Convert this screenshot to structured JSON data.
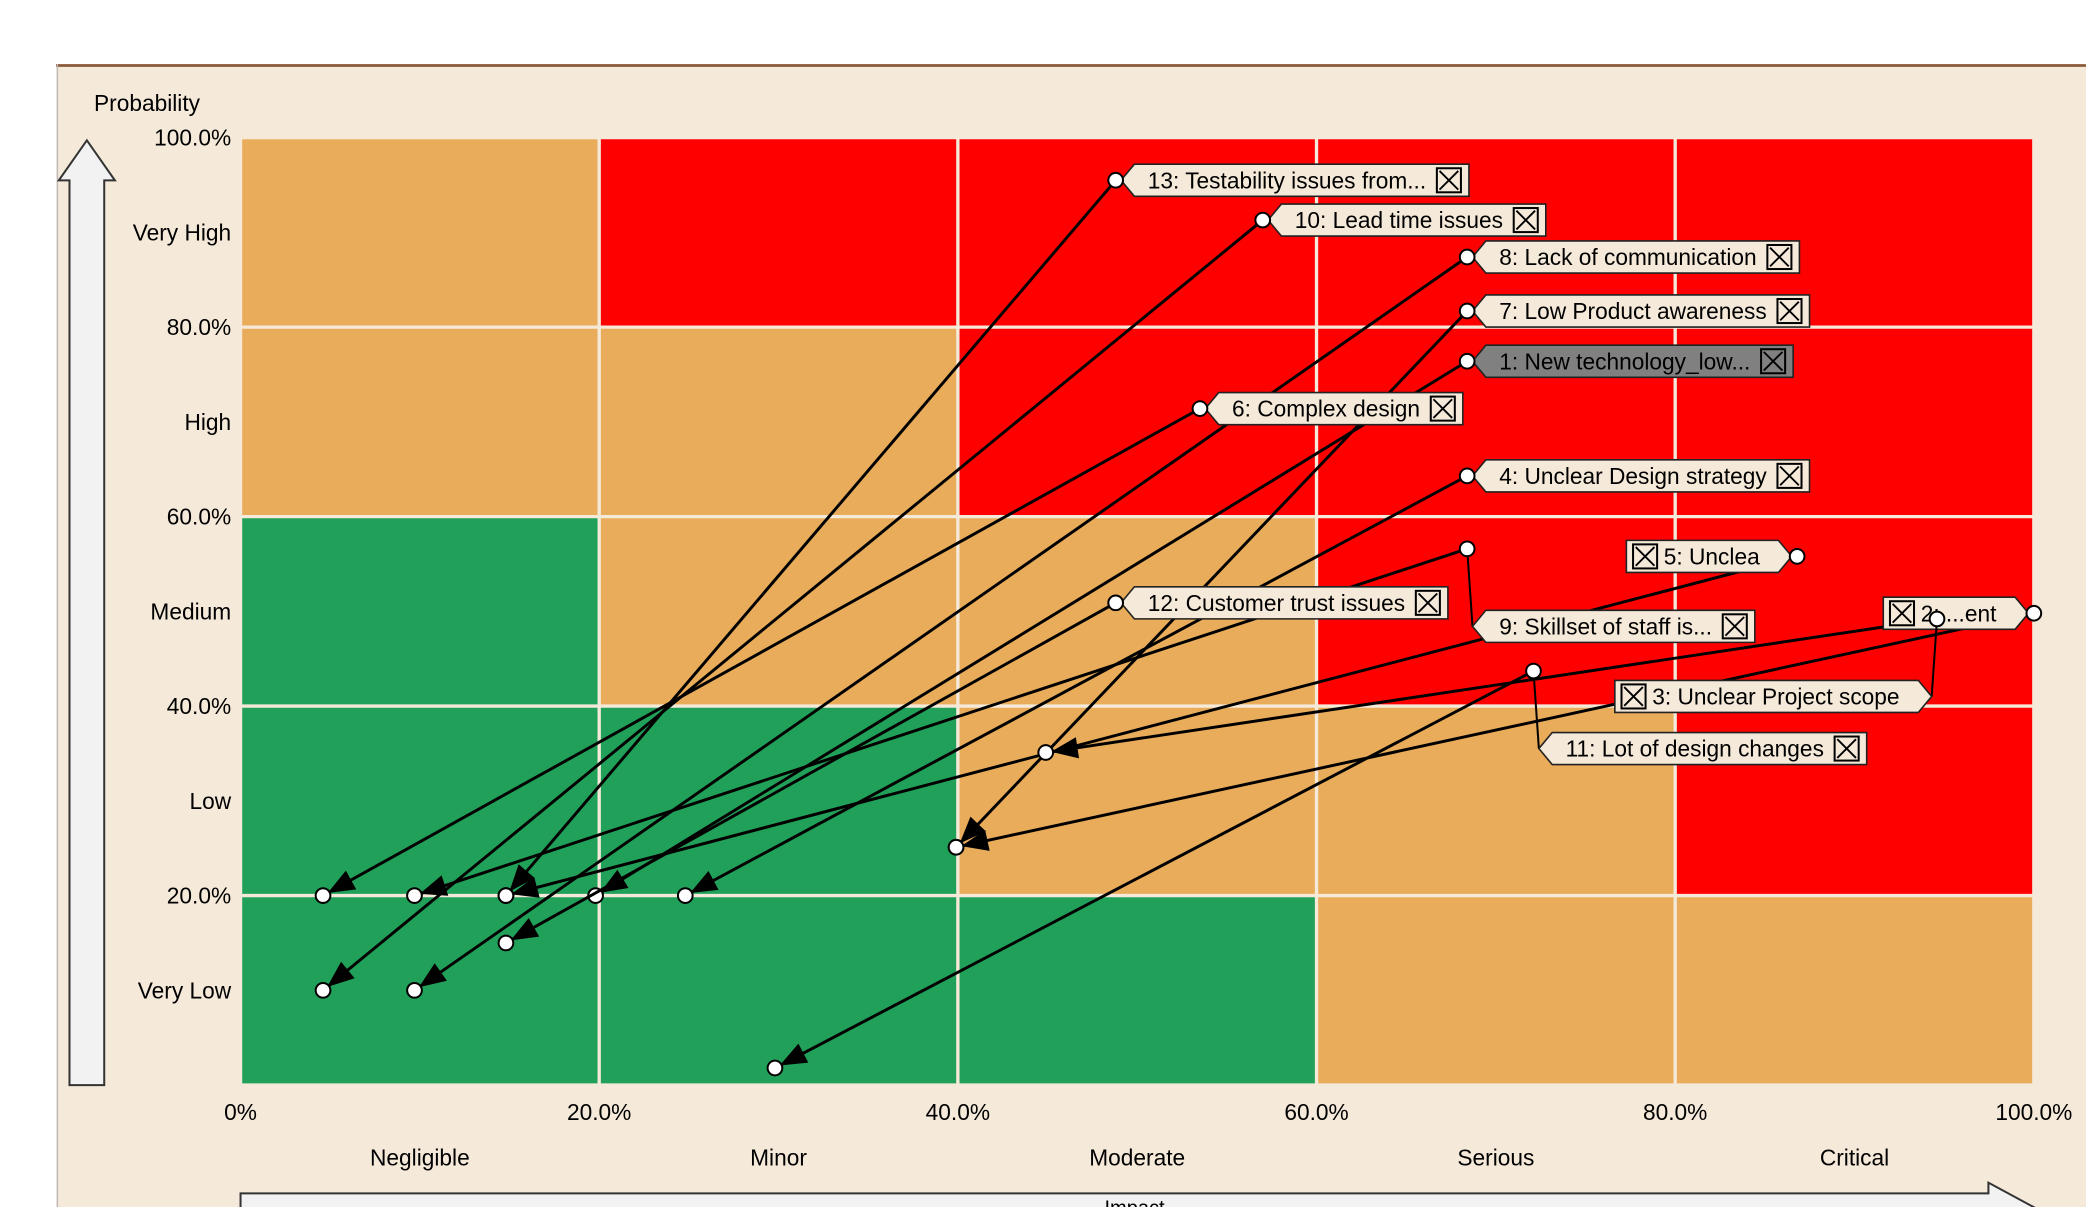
{
  "chart_data": {
    "type": "scatter",
    "subtype": "risk-matrix",
    "ylabel": "Probability",
    "xlabel": "Impact",
    "xlim": [
      0,
      100
    ],
    "ylim": [
      0,
      100
    ],
    "x_ticks": [
      "0%",
      "20.0%",
      "40.0%",
      "60.0%",
      "80.0%",
      "100.0%"
    ],
    "y_ticks": [
      "100.0%",
      "80.0%",
      "60.0%",
      "40.0%",
      "20.0%"
    ],
    "x_categories": [
      "Negligible",
      "Minor",
      "Moderate",
      "Serious",
      "Critical"
    ],
    "y_categories": [
      "Very High",
      "High",
      "Medium",
      "Low",
      "Very Low"
    ],
    "colors": {
      "red": "#ff0000",
      "orange": "#e8ac5a",
      "green": "#21a05a",
      "background": "#f5e9d9",
      "selected": "#808080"
    },
    "cell_colors_top_to_bottom": [
      [
        "orange",
        "red",
        "red",
        "red",
        "red"
      ],
      [
        "orange",
        "orange",
        "red",
        "red",
        "red"
      ],
      [
        "green",
        "orange",
        "orange",
        "red",
        "red"
      ],
      [
        "green",
        "green",
        "orange",
        "orange",
        "red"
      ],
      [
        "green",
        "green",
        "green",
        "orange",
        "orange"
      ]
    ],
    "risks": [
      {
        "label": "13: Testability issues from...",
        "from": [
          48.8,
          95.5
        ],
        "to": [
          14.8,
          20.0
        ],
        "flipped": false,
        "selected": false
      },
      {
        "label": "10: Lead time issues",
        "from": [
          57.0,
          91.3
        ],
        "to": [
          4.6,
          10.0
        ],
        "flipped": false,
        "selected": false
      },
      {
        "label": "8: Lack of communication",
        "from": [
          68.4,
          87.4
        ],
        "to": [
          9.7,
          10.0
        ],
        "flipped": false,
        "selected": false
      },
      {
        "label": "7: Low Product awareness",
        "from": [
          68.4,
          81.7
        ],
        "to": [
          39.9,
          25.1
        ],
        "flipped": false,
        "selected": false
      },
      {
        "label": "1: New technology_low...",
        "from": [
          68.4,
          76.4
        ],
        "to": [
          19.8,
          20.0
        ],
        "flipped": false,
        "selected": true
      },
      {
        "label": "6: Complex design",
        "from": [
          53.5,
          71.4
        ],
        "to": [
          4.6,
          20.0
        ],
        "flipped": false,
        "selected": false
      },
      {
        "label": "4: Unclear Design strategy",
        "from": [
          68.4,
          64.3
        ],
        "to": [
          24.8,
          20.0
        ],
        "flipped": false,
        "selected": false
      },
      {
        "label": "2: ...ent",
        "from": [
          100.0,
          49.8
        ],
        "to": [
          39.9,
          25.1
        ],
        "flipped": true,
        "selected": false
      },
      {
        "label": "5: Unclea",
        "from": [
          86.8,
          55.8
        ],
        "to": [
          14.8,
          20.0
        ],
        "flipped": true,
        "selected": false
      },
      {
        "label": "9: Skillset of staff is...",
        "from": [
          68.4,
          56.6
        ],
        "to": [
          9.7,
          20.0
        ],
        "flipped": false,
        "selected": false
      },
      {
        "label": "12: Customer trust issues",
        "from": [
          48.8,
          50.9
        ],
        "to": [
          14.8,
          15.0
        ],
        "flipped": false,
        "selected": false
      },
      {
        "label": "3: Unclear Project scope",
        "from": [
          94.6,
          49.2
        ],
        "to": [
          44.9,
          35.1
        ],
        "flipped": true,
        "selected": false
      },
      {
        "label": "11: Lot of design changes",
        "from": [
          72.1,
          43.7
        ],
        "to": [
          29.8,
          1.8
        ],
        "flipped": false,
        "selected": false
      }
    ]
  }
}
